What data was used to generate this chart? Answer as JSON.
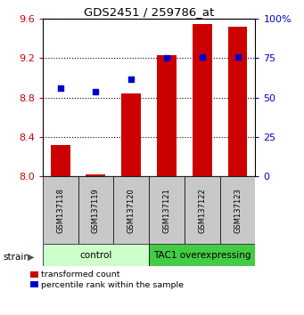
{
  "title": "GDS2451 / 259786_at",
  "samples": [
    "GSM137118",
    "GSM137119",
    "GSM137120",
    "GSM137121",
    "GSM137122",
    "GSM137123"
  ],
  "transformed_counts": [
    8.32,
    8.02,
    8.84,
    9.23,
    9.55,
    9.52
  ],
  "percentile_ranks": [
    56,
    54,
    62,
    75,
    76,
    76
  ],
  "ylim_left": [
    8.0,
    9.6
  ],
  "ylim_right": [
    0,
    100
  ],
  "yticks_left": [
    8.0,
    8.4,
    8.8,
    9.2,
    9.6
  ],
  "yticks_right": [
    0,
    25,
    50,
    75,
    100
  ],
  "ytick_labels_right": [
    "0",
    "25",
    "50",
    "75",
    "100%"
  ],
  "bar_color": "#cc0000",
  "dot_color": "#0000cc",
  "bar_width": 0.55,
  "groups": [
    {
      "label": "control",
      "indices": [
        0,
        1,
        2
      ],
      "color": "#ccffcc"
    },
    {
      "label": "TAC1 overexpressing",
      "indices": [
        3,
        4,
        5
      ],
      "color": "#44cc44"
    }
  ],
  "strain_label": "strain",
  "legend_red": "transformed count",
  "legend_blue": "percentile rank within the sample",
  "tick_color_left": "#cc0000",
  "tick_color_right": "#0000cc",
  "sample_box_color": "#c8c8c8",
  "control_color": "#ccffcc",
  "tac1_color": "#44cc44"
}
